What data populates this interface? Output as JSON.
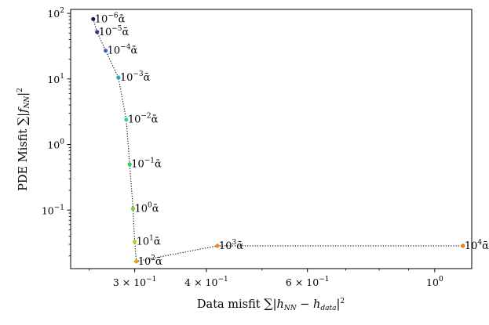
{
  "chart_data": {
    "type": "scatter",
    "title": "",
    "xlabel": "Data misfit ∑|h_NN − h_data|²",
    "ylabel": "PDE Misfit ∑|f_NN|²",
    "xscale": "log",
    "yscale": "log",
    "xlim": [
      0.232,
      1.16
    ],
    "ylim": [
      0.0128,
      115
    ],
    "grid": false,
    "legend": "none",
    "line_style": "dotted",
    "x_ticks": [
      {
        "value": 0.3,
        "label": "3 × 10",
        "exp": "−1"
      },
      {
        "value": 0.4,
        "label": "4 × 10",
        "exp": "−1"
      },
      {
        "value": 0.6,
        "label": "6 × 10",
        "exp": "−1"
      },
      {
        "value": 1.0,
        "label": "10",
        "exp": "0"
      }
    ],
    "y_ticks": [
      {
        "value": 100,
        "label": "10",
        "exp": "2"
      },
      {
        "value": 10,
        "label": "10",
        "exp": "1"
      },
      {
        "value": 1,
        "label": "10",
        "exp": "0"
      },
      {
        "value": 0.1,
        "label": "10",
        "exp": "−1"
      }
    ],
    "points": [
      {
        "x": 0.254,
        "y": 82,
        "color": "#2d0b4e",
        "label": "10",
        "exp": "−6",
        "suffix": "ᾱ"
      },
      {
        "x": 0.258,
        "y": 52,
        "color": "#35369a",
        "label": "10",
        "exp": "−5",
        "suffix": "ᾱ"
      },
      {
        "x": 0.267,
        "y": 27,
        "color": "#3a66c8",
        "label": "10",
        "exp": "−4",
        "suffix": "ᾱ"
      },
      {
        "x": 0.281,
        "y": 10.5,
        "color": "#22aab8",
        "label": "10",
        "exp": "−3",
        "suffix": "ᾱ"
      },
      {
        "x": 0.29,
        "y": 2.4,
        "color": "#3bd08e",
        "label": "10",
        "exp": "−2",
        "suffix": "ᾱ"
      },
      {
        "x": 0.294,
        "y": 0.5,
        "color": "#2fd05c",
        "label": "10",
        "exp": "−1",
        "suffix": "ᾱ"
      },
      {
        "x": 0.298,
        "y": 0.105,
        "color": "#7ad238",
        "label": "10",
        "exp": "0",
        "suffix": "ᾱ"
      },
      {
        "x": 0.3,
        "y": 0.033,
        "color": "#c5c81e",
        "label": "10",
        "exp": "1",
        "suffix": "ᾱ"
      },
      {
        "x": 0.302,
        "y": 0.0165,
        "color": "#e0a515",
        "label": "10",
        "exp": "2",
        "suffix": "ᾱ"
      },
      {
        "x": 0.418,
        "y": 0.0285,
        "color": "#ee8a1e",
        "label": "10",
        "exp": "3",
        "suffix": "ᾱ"
      },
      {
        "x": 1.12,
        "y": 0.0285,
        "color": "#f07a1a",
        "label": "10",
        "exp": "4",
        "suffix": "ᾱ"
      }
    ]
  }
}
